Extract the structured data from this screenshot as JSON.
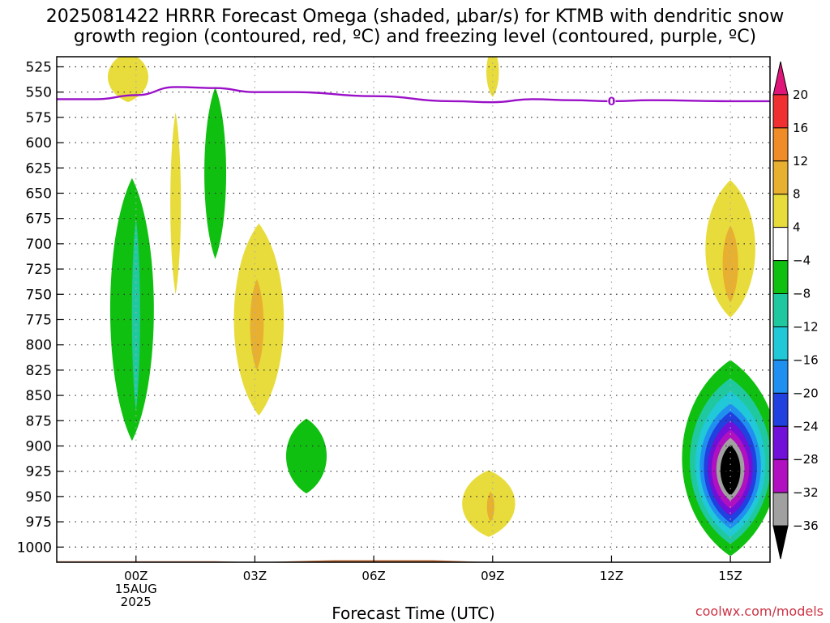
{
  "title_line1": "2025081422 HRRR Forecast Omega (shaded, μbar/s) for KTMB with dendritic snow",
  "title_line2": "growth region (contoured, red, ºC) and freezing level (contoured, purple, ºC)",
  "xlabel": "Forecast Time (UTC)",
  "watermark": "coolwx.com/models",
  "chart_data": {
    "type": "contour",
    "x_ticks": [
      {
        "hour": 0,
        "lines": [
          "00Z",
          "15AUG",
          "2025"
        ]
      },
      {
        "hour": 3,
        "lines": [
          "03Z"
        ]
      },
      {
        "hour": 6,
        "lines": [
          "06Z"
        ]
      },
      {
        "hour": 9,
        "lines": [
          "09Z"
        ]
      },
      {
        "hour": 12,
        "lines": [
          "12Z"
        ]
      },
      {
        "hour": 15,
        "lines": [
          "15Z"
        ]
      }
    ],
    "xlim": [
      -2,
      16
    ],
    "y_ticks": [
      525,
      550,
      575,
      600,
      625,
      650,
      675,
      700,
      725,
      750,
      775,
      800,
      825,
      850,
      875,
      900,
      925,
      950,
      975,
      1000
    ],
    "ylim": [
      515,
      1015
    ],
    "colorbar": {
      "bands": [
        {
          "from": 20,
          "to": 24,
          "color": "#e0157a"
        },
        {
          "from": 16,
          "to": 20,
          "color": "#f03030"
        },
        {
          "from": 12,
          "to": 16,
          "color": "#f08c28"
        },
        {
          "from": 8,
          "to": 12,
          "color": "#e8b030"
        },
        {
          "from": 4,
          "to": 8,
          "color": "#e8dc3c"
        },
        {
          "from": -4,
          "to": 4,
          "color": "#ffffff"
        },
        {
          "from": -8,
          "to": -4,
          "color": "#10c010"
        },
        {
          "from": -12,
          "to": -8,
          "color": "#20c8a0"
        },
        {
          "from": -16,
          "to": -12,
          "color": "#20c8d8"
        },
        {
          "from": -20,
          "to": -16,
          "color": "#2090f0"
        },
        {
          "from": -24,
          "to": -20,
          "color": "#2040e0"
        },
        {
          "from": -28,
          "to": -24,
          "color": "#7010d8"
        },
        {
          "from": -32,
          "to": -28,
          "color": "#b010c0"
        },
        {
          "from": -36,
          "to": -32,
          "color": "#a0a0a0"
        },
        {
          "from": -40,
          "to": -36,
          "color": "#000000"
        }
      ],
      "labels": [
        20,
        16,
        12,
        8,
        4,
        -4,
        -8,
        -12,
        -16,
        -20,
        -24,
        -28,
        -32,
        -36
      ]
    },
    "omega_regions": [
      {
        "color": "#e8dc3c",
        "value_band": "4 to 8",
        "center_hour": -0.2,
        "center_hPa": 535,
        "half_width_h": 0.65,
        "half_height_hPa": 25
      },
      {
        "color": "#e8dc3c",
        "value_band": "4 to 8",
        "center_hour": 9.0,
        "center_hPa": 530,
        "half_width_h": 0.2,
        "half_height_hPa": 25
      },
      {
        "color": "#e8dc3c",
        "value_band": "4 to 8",
        "center_hour": 1.0,
        "center_hPa": 660,
        "half_width_h": 0.17,
        "half_height_hPa": 90
      },
      {
        "color": "#10c010",
        "value_band": "-8 to -4",
        "center_hour": 2.0,
        "center_hPa": 630,
        "half_width_h": 0.35,
        "half_height_hPa": 85
      },
      {
        "color": "#10c010",
        "value_band": "-8 to -4",
        "center_hour": -0.1,
        "center_hPa": 765,
        "half_width_h": 0.7,
        "half_height_hPa": 130
      },
      {
        "color": "#20c8a0",
        "value_band": "-12 to -8",
        "center_hour": 0.0,
        "center_hPa": 770,
        "half_width_h": 0.13,
        "half_height_hPa": 95
      },
      {
        "color": "#e8dc3c",
        "value_band": "4 to 8",
        "center_hour": 3.1,
        "center_hPa": 775,
        "half_width_h": 0.8,
        "half_height_hPa": 95
      },
      {
        "color": "#e8b030",
        "value_band": "8 to 12",
        "center_hour": 3.05,
        "center_hPa": 780,
        "half_width_h": 0.22,
        "half_height_hPa": 45
      },
      {
        "color": "#10c010",
        "value_band": "-8 to -4",
        "center_hour": 4.3,
        "center_hPa": 910,
        "half_width_h": 0.65,
        "half_height_hPa": 37
      },
      {
        "color": "#e8dc3c",
        "value_band": "4 to 8",
        "center_hour": 8.9,
        "center_hPa": 957,
        "half_width_h": 0.85,
        "half_height_hPa": 33
      },
      {
        "color": "#e8b030",
        "value_band": "8 to 12",
        "center_hour": 8.95,
        "center_hPa": 960,
        "half_width_h": 0.12,
        "half_height_hPa": 15
      },
      {
        "color": "#e8dc3c",
        "value_band": "4 to 8",
        "center_hour": 15.0,
        "center_hPa": 705,
        "half_width_h": 0.8,
        "half_height_hPa": 68
      },
      {
        "color": "#e8b030",
        "value_band": "8 to 12",
        "center_hour": 15.0,
        "center_hPa": 720,
        "half_width_h": 0.25,
        "half_height_hPa": 38
      },
      {
        "color": "#10c010",
        "value_band": "-8 to -4",
        "center_hour": 15.0,
        "center_hPa": 912,
        "half_width_h": 1.55,
        "half_height_hPa": 97
      },
      {
        "color": "#20c8a0",
        "value_band": "-12 to -8",
        "center_hour": 15.0,
        "center_hPa": 915,
        "half_width_h": 1.3,
        "half_height_hPa": 82
      },
      {
        "color": "#20c8d8",
        "value_band": "-16 to -12",
        "center_hour": 15.0,
        "center_hPa": 918,
        "half_width_h": 1.12,
        "half_height_hPa": 72
      },
      {
        "color": "#2090f0",
        "value_band": "-20 to -16",
        "center_hour": 15.0,
        "center_hPa": 920,
        "half_width_h": 0.98,
        "half_height_hPa": 62
      },
      {
        "color": "#2040e0",
        "value_band": "-24 to -20",
        "center_hour": 15.0,
        "center_hPa": 921,
        "half_width_h": 0.85,
        "half_height_hPa": 55
      },
      {
        "color": "#7010d8",
        "value_band": "-28 to -24",
        "center_hour": 15.0,
        "center_hPa": 922,
        "half_width_h": 0.72,
        "half_height_hPa": 47
      },
      {
        "color": "#b010c0",
        "value_band": "-32 to -28",
        "center_hour": 15.0,
        "center_hPa": 923,
        "half_width_h": 0.6,
        "half_height_hPa": 39
      },
      {
        "color": "#a0a0a0",
        "value_band": "-36 to -32",
        "center_hour": 15.0,
        "center_hPa": 923,
        "half_width_h": 0.45,
        "half_height_hPa": 31
      },
      {
        "color": "#000000",
        "value_band": "< -36",
        "center_hour": 15.0,
        "center_hPa": 924,
        "half_width_h": 0.32,
        "half_height_hPa": 25
      }
    ],
    "freezing_level": {
      "color": "#9a10c8",
      "label": "0",
      "label_hour": 12.0,
      "points": [
        {
          "hour": -2.0,
          "hPa": 557
        },
        {
          "hour": -1.0,
          "hPa": 557
        },
        {
          "hour": 0.0,
          "hPa": 553
        },
        {
          "hour": 1.0,
          "hPa": 545
        },
        {
          "hour": 2.0,
          "hPa": 546
        },
        {
          "hour": 3.0,
          "hPa": 550
        },
        {
          "hour": 4.0,
          "hPa": 550
        },
        {
          "hour": 6.0,
          "hPa": 554
        },
        {
          "hour": 8.0,
          "hPa": 559
        },
        {
          "hour": 9.0,
          "hPa": 560
        },
        {
          "hour": 10.0,
          "hPa": 557
        },
        {
          "hour": 11.0,
          "hPa": 558
        },
        {
          "hour": 12.0,
          "hPa": 559
        },
        {
          "hour": 13.0,
          "hPa": 558
        },
        {
          "hour": 15.0,
          "hPa": 559
        },
        {
          "hour": 16.0,
          "hPa": 559
        }
      ]
    },
    "ground": {
      "color": "#b06030",
      "points": [
        {
          "hour": -2.0,
          "hPa": 1014
        },
        {
          "hour": 2.0,
          "hPa": 1014
        },
        {
          "hour": 3.0,
          "hPa": 1015
        },
        {
          "hour": 5.0,
          "hPa": 1013
        },
        {
          "hour": 7.5,
          "hPa": 1013
        },
        {
          "hour": 9.0,
          "hPa": 1015
        },
        {
          "hour": 16.0,
          "hPa": 1015
        }
      ]
    },
    "grid": true
  }
}
